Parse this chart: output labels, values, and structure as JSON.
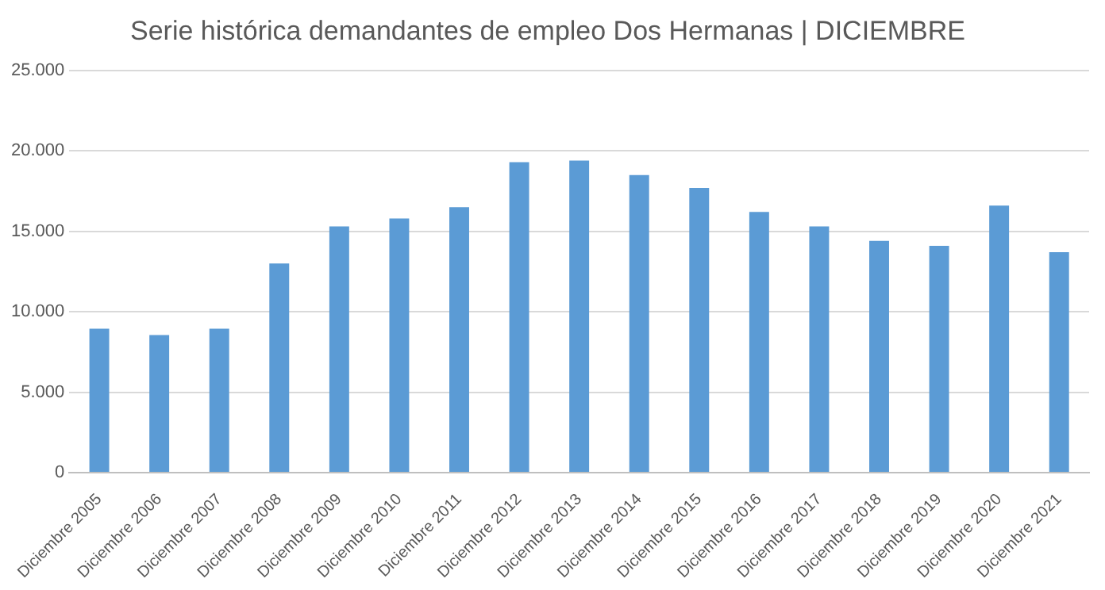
{
  "chart_data": {
    "type": "bar",
    "title": "Serie histórica demandantes de empleo Dos Hermanas | DICIEMBRE",
    "categories": [
      "Diciembre 2005",
      "Diciembre 2006",
      "Diciembre 2007",
      "Diciembre 2008",
      "Diciembre 2009",
      "Diciembre 2010",
      "Diciembre 2011",
      "Diciembre 2012",
      "Diciembre 2013",
      "Diciembre 2014",
      "Diciembre 2015",
      "Diciembre 2016",
      "Diciembre 2017",
      "Diciembre 2018",
      "Diciembre 2019",
      "Diciembre 2020",
      "Diciembre 2021"
    ],
    "values": [
      8950,
      8550,
      8950,
      13000,
      15300,
      15800,
      16500,
      19300,
      19400,
      18500,
      17700,
      16200,
      15300,
      14400,
      14100,
      16600,
      13700
    ],
    "color": "#5b9bd5",
    "ylim": [
      0,
      25000
    ],
    "yticks": [
      0,
      {
        "value": 5000,
        "label": "5.000"
      },
      {
        "value": 10000,
        "label": "10.000"
      },
      {
        "value": 15000,
        "label": "15.000"
      },
      {
        "value": 20000,
        "label": "20.000"
      },
      {
        "value": 25000,
        "label": "25.000"
      }
    ],
    "grid": "y",
    "legend": false
  }
}
